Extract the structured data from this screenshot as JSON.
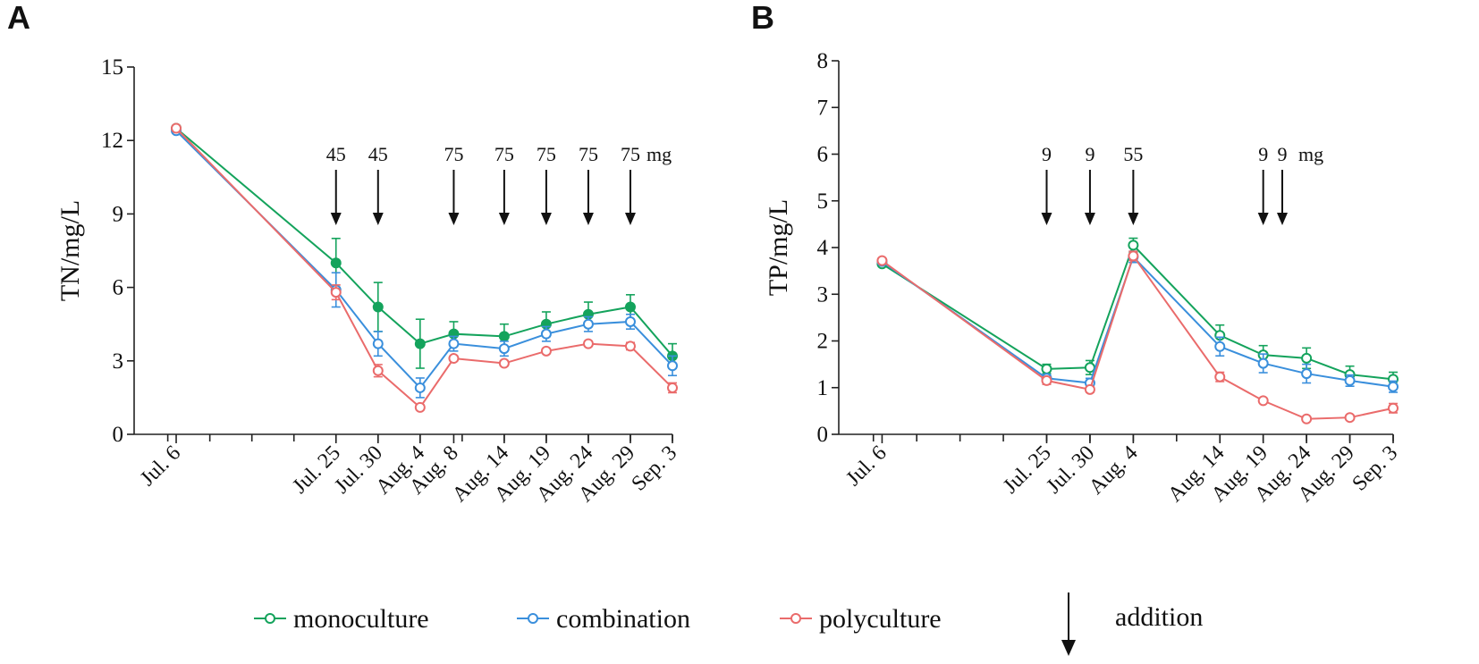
{
  "colors": {
    "monoculture": "#14a35c",
    "combination": "#3a8fdc",
    "polyculture": "#ea6b6b"
  },
  "legend": {
    "items": [
      {
        "key": "monoculture",
        "label": "monoculture"
      },
      {
        "key": "combination",
        "label": "combination"
      },
      {
        "key": "polyculture",
        "label": "polyculture"
      }
    ],
    "addition_label": "addition"
  },
  "chart_data": [
    {
      "panel": "A",
      "type": "line",
      "ylabel": "TN/mg/L",
      "ylim": [
        0,
        15
      ],
      "yticks": [
        0,
        3,
        6,
        9,
        12,
        15
      ],
      "x_days": [
        6,
        25,
        30,
        35,
        39,
        45,
        50,
        55,
        60,
        65
      ],
      "xlim": [
        1,
        65
      ],
      "x_tick_labels": [
        "Jul. 6",
        "Jul. 25",
        "Jul. 30",
        "Aug. 4",
        "Aug. 8",
        "Aug. 14",
        "Aug. 19",
        "Aug. 24",
        "Aug. 29",
        "Sep. 3"
      ],
      "series": [
        {
          "name": "monoculture",
          "values": [
            12.5,
            7.0,
            5.2,
            3.7,
            4.1,
            4.0,
            4.5,
            4.9,
            5.2,
            3.2
          ],
          "errors": [
            0.1,
            1.0,
            1.0,
            1.0,
            0.5,
            0.5,
            0.5,
            0.5,
            0.5,
            0.5
          ],
          "filled": true
        },
        {
          "name": "combination",
          "values": [
            12.4,
            5.9,
            3.7,
            1.9,
            3.7,
            3.5,
            4.1,
            4.5,
            4.6,
            2.8
          ],
          "errors": [
            0.1,
            0.7,
            0.5,
            0.4,
            0.3,
            0.3,
            0.3,
            0.3,
            0.3,
            0.4
          ],
          "filled": false
        },
        {
          "name": "polyculture",
          "values": [
            12.5,
            5.8,
            2.6,
            1.1,
            3.1,
            2.9,
            3.4,
            3.7,
            3.6,
            1.9
          ],
          "errors": [
            0.1,
            0.3,
            0.25,
            0.1,
            0.1,
            0.1,
            0.1,
            0.1,
            0.15,
            0.2
          ],
          "filled": false
        }
      ],
      "annotations": [
        {
          "day": 25,
          "label": "45"
        },
        {
          "day": 30,
          "label": "45"
        },
        {
          "day": 39,
          "label": "75"
        },
        {
          "day": 45,
          "label": "75"
        },
        {
          "day": 50,
          "label": "75"
        },
        {
          "day": 55,
          "label": "75"
        },
        {
          "day": 60,
          "label": "75"
        }
      ],
      "annotation_unit": "mg"
    },
    {
      "panel": "B",
      "type": "line",
      "ylabel": "TP/mg/L",
      "ylim": [
        0,
        8
      ],
      "yticks": [
        0,
        1,
        2,
        3,
        4,
        5,
        6,
        7,
        8
      ],
      "x_days": [
        6,
        25,
        30,
        35,
        45,
        50,
        55,
        60,
        65
      ],
      "xlim": [
        1,
        65
      ],
      "x_tick_labels": [
        "Jul. 6",
        "Jul. 25",
        "Jul. 30",
        "Aug. 4",
        "Aug. 14",
        "Aug. 19",
        "Aug. 24",
        "Aug. 29",
        "Sep. 3"
      ],
      "series": [
        {
          "name": "monoculture",
          "values": [
            3.65,
            1.4,
            1.43,
            4.05,
            2.12,
            1.7,
            1.63,
            1.28,
            1.18
          ],
          "errors": [
            0.05,
            0.1,
            0.15,
            0.15,
            0.22,
            0.2,
            0.22,
            0.18,
            0.15
          ],
          "filled": false
        },
        {
          "name": "combination",
          "values": [
            3.7,
            1.2,
            1.1,
            3.8,
            1.88,
            1.52,
            1.3,
            1.15,
            1.02
          ],
          "errors": [
            0.05,
            0.08,
            0.1,
            0.12,
            0.2,
            0.2,
            0.2,
            0.12,
            0.12
          ],
          "filled": false
        },
        {
          "name": "polyculture",
          "values": [
            3.72,
            1.15,
            0.96,
            3.82,
            1.23,
            0.72,
            0.33,
            0.36,
            0.56
          ],
          "errors": [
            0.05,
            0.08,
            0.06,
            0.1,
            0.1,
            0.05,
            0.04,
            0.04,
            0.1
          ],
          "filled": false
        }
      ],
      "annotations": [
        {
          "day": 25,
          "label": "9"
        },
        {
          "day": 30,
          "label": "9"
        },
        {
          "day": 35,
          "label": "55"
        },
        {
          "day": 50,
          "label": "9"
        },
        {
          "day": 52.2,
          "label": "9"
        }
      ],
      "annotation_unit": "mg"
    }
  ]
}
